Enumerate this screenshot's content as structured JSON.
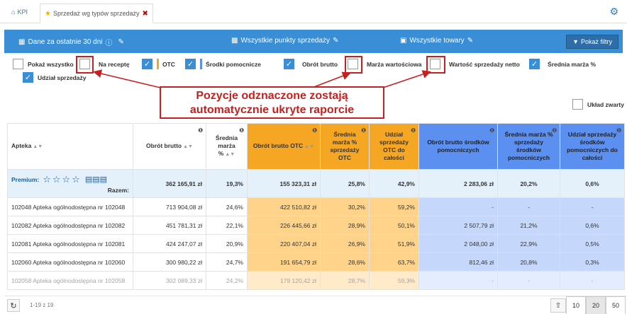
{
  "tabs": {
    "kpi": "KPI",
    "report": "Sprzedaż wg typów sprzedaży"
  },
  "filters": {
    "period": "Dane za ostatnie 30 dni",
    "points": "Wszystkie punkty sprzedaży",
    "products": "Wszystkie towary",
    "show_button": "Pokaż filtry"
  },
  "checkboxes": {
    "show_all": "Pokaż wszystko",
    "prescription": "Na receptę",
    "otc": "OTC",
    "aids": "Środki pomocnicze",
    "gross_turnover": "Obrót brutto",
    "value_margin": "Marża wartościowa",
    "net_sales_value": "Wartość sprzedaży netto",
    "avg_margin": "Średnia marża %",
    "sales_share": "Udział sprzedaży",
    "compact_layout": "Układ zwarty"
  },
  "colors": {
    "otc": "#f5a623",
    "aids": "#5b8ff0",
    "accent": "#3a8ed5",
    "annotation": "#c62020"
  },
  "annotation": {
    "line1": "Pozycje odznaczone zostają",
    "line2": "automatycznie ukryte raporcie"
  },
  "table": {
    "headers": {
      "pharmacy": "Apteka",
      "gross": "Obrót brutto",
      "avg_margin": "Średnia marża %",
      "otc_gross": "Obrót brutto OTC",
      "otc_margin": "Średnia marża % sprzedaży OTC",
      "otc_share": "Udział sprzedaży OTC do całości",
      "aids_gross": "Obrót brutto środków pomocniczych",
      "aids_margin": "Średnia marża % sprzedaży środków pomocniczych",
      "aids_share": "Udział sprzedaży środków pomocniczych do całości"
    },
    "total": {
      "label": "Premium:",
      "razem": "Razem:",
      "gross": "362 165,91 zł",
      "avg_margin": "19,3%",
      "otc_gross": "155 323,31 zł",
      "otc_margin": "25,8%",
      "otc_share": "42,9%",
      "aids_gross": "2 283,06 zł",
      "aids_margin": "20,2%",
      "aids_share": "0,6%"
    },
    "rows": [
      {
        "name": "102048 Apteka ogólnodostępna nr 102048",
        "gross": "713 904,08 zł",
        "avg_margin": "24,6%",
        "otc_gross": "422 510,82 zł",
        "otc_margin": "30,2%",
        "otc_share": "59,2%",
        "aids_gross": "-",
        "aids_margin": "-",
        "aids_share": "-"
      },
      {
        "name": "102082 Apteka ogólnodostępna nr 102082",
        "gross": "451 781,31 zł",
        "avg_margin": "22,1%",
        "otc_gross": "226 445,66 zł",
        "otc_margin": "28,9%",
        "otc_share": "50,1%",
        "aids_gross": "2 507,79 zł",
        "aids_margin": "21,2%",
        "aids_share": "0,6%"
      },
      {
        "name": "102081 Apteka ogólnodostępna nr 102081",
        "gross": "424 247,07 zł",
        "avg_margin": "20,9%",
        "otc_gross": "220 407,04 zł",
        "otc_margin": "26,9%",
        "otc_share": "51,9%",
        "aids_gross": "2 048,00 zł",
        "aids_margin": "22,9%",
        "aids_share": "0,5%"
      },
      {
        "name": "102060 Apteka ogólnodostępna nr 102060",
        "gross": "300 980,22 zł",
        "avg_margin": "24,7%",
        "otc_gross": "191 654,79 zł",
        "otc_margin": "28,6%",
        "otc_share": "63,7%",
        "aids_gross": "812,46 zł",
        "aids_margin": "20,8%",
        "aids_share": "0,3%"
      },
      {
        "name": "102058 Apteka ogólnodostępna nr 102058",
        "gross": "302 089,33 zł",
        "avg_margin": "24,2%",
        "otc_gross": "179 120,42 zł",
        "otc_margin": "28,7%",
        "otc_share": "59,3%",
        "aids_gross": "-",
        "aids_margin": "-",
        "aids_share": "-"
      }
    ]
  },
  "footer": {
    "page_info": "1-19 z 19",
    "sizes": [
      "10",
      "20",
      "50"
    ],
    "selected_size": "20"
  }
}
